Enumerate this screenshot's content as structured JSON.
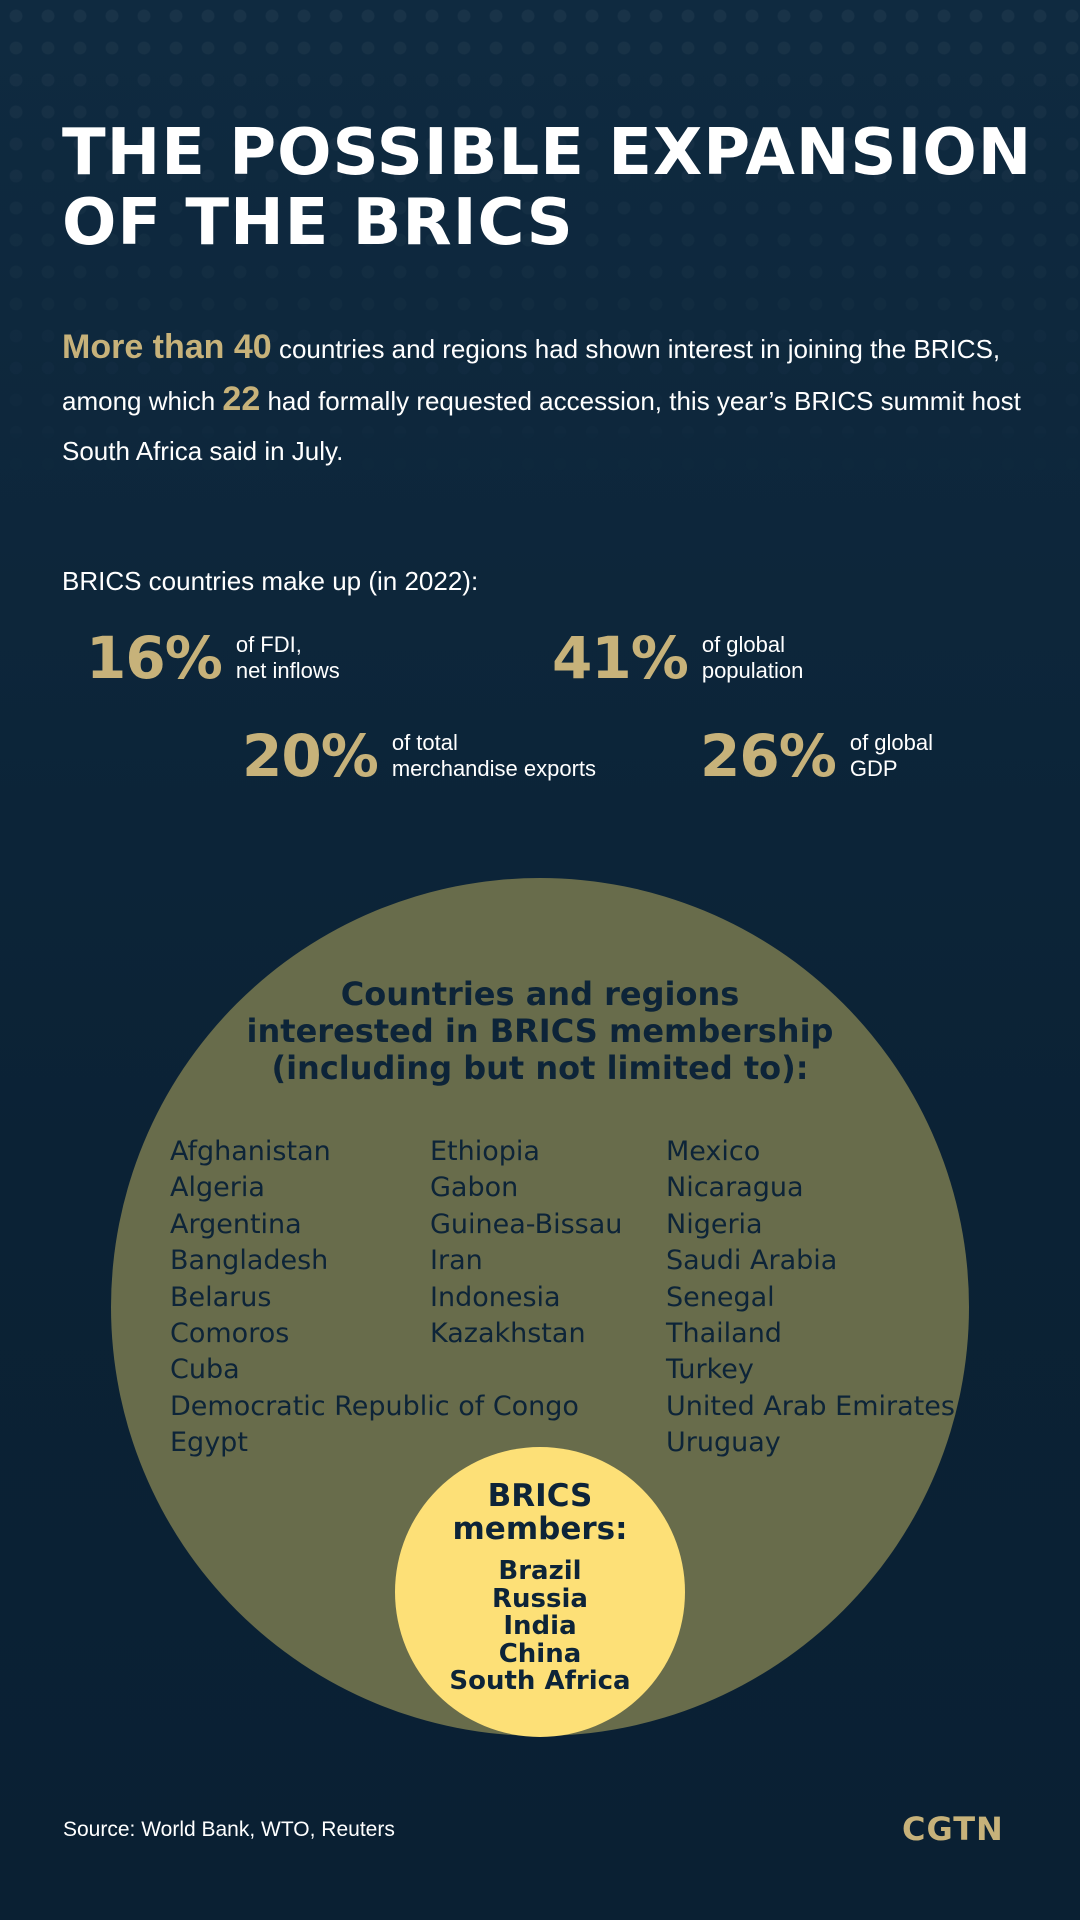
{
  "title": {
    "line1": "THE POSSIBLE EXPANSION",
    "line2": "OF THE BRICS"
  },
  "intro": {
    "highlight1": "More than 40",
    "text1": " countries and regions had shown interest in joining the BRICS, among which ",
    "highlight2": "22",
    "text2": " had formally requested accession, this year’s BRICS summit host South Africa said in July."
  },
  "stats": {
    "intro": "BRICS countries make up (in 2022):",
    "items": [
      {
        "value": "16%",
        "label": "of FDI,\nnet inflows"
      },
      {
        "value": "41%",
        "label": "of global\npopulation"
      },
      {
        "value": "20%",
        "label": "of total\nmerchandise exports"
      },
      {
        "value": "26%",
        "label": "of global\nGDP"
      }
    ]
  },
  "interested": {
    "title_line1": "Countries and regions",
    "title_line2": "interested in BRICS membership",
    "title_line3": "(including but not limited to):",
    "col1": [
      "Afghanistan",
      "Algeria",
      "Argentina",
      "Bangladesh",
      "Belarus",
      "Comoros",
      "Cuba",
      "Democratic Republic of Congo",
      "Egypt"
    ],
    "col2": [
      "Ethiopia",
      "Gabon",
      "Guinea-Bissau",
      "Iran",
      "Indonesia",
      "Kazakhstan"
    ],
    "col3": [
      "Mexico",
      "Nicaragua",
      "Nigeria",
      "Saudi Arabia",
      "Senegal",
      "Thailand",
      "Turkey",
      "United Arab Emirates",
      "Uruguay"
    ]
  },
  "members": {
    "title_line1": "BRICS",
    "title_line2": "members:",
    "list": [
      "Brazil",
      "Russia",
      "India",
      "China",
      "South Africa"
    ]
  },
  "footer": {
    "source": "Source: World Bank, WTO, Reuters",
    "logo": "CGTN"
  },
  "colors": {
    "background": "#0d2438",
    "accent_gold": "#c7b27a",
    "outer_circle": "#686c4b",
    "inner_circle": "#fde077"
  }
}
